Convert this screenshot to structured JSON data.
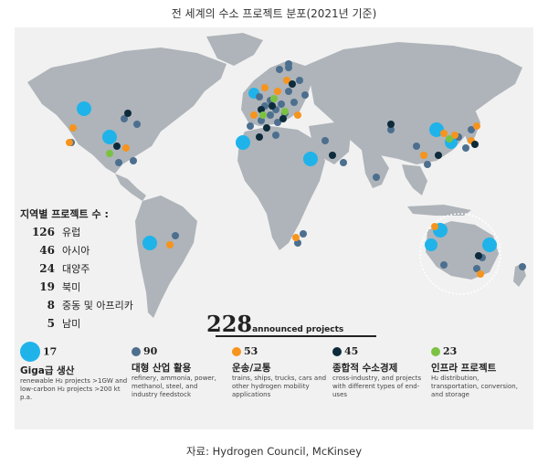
{
  "title": "전 세계의 수소 프로젝트 분포(2021년 기준)",
  "source": "자료: Hydrogen Council, McKinsey",
  "regions": {
    "title": "지역별 프로젝트 수 :",
    "items": [
      {
        "count": "126",
        "name": "유럽"
      },
      {
        "count": "46",
        "name": "아시아"
      },
      {
        "count": "24",
        "name": "대양주"
      },
      {
        "count": "19",
        "name": "북미"
      },
      {
        "count": "8",
        "name": "중동 및 아프리카"
      },
      {
        "count": "5",
        "name": "남미"
      }
    ]
  },
  "total": {
    "value": "228",
    "label": "announced projects"
  },
  "legend": [
    {
      "count": "17",
      "heading": "Giga급 생산",
      "desc": "renewable H₂ projects >1GW and low-carbon H₂ projects >200 kt p.a.",
      "color": "#1fb3ea",
      "type": "giga"
    },
    {
      "count": "90",
      "heading": "대형 산업 활용",
      "desc": "refinery, ammonia, power, methanol, steel, and industry feedstock",
      "color": "#4d6f8f",
      "type": "industry"
    },
    {
      "count": "53",
      "heading": "운송/교통",
      "desc": "trains, ships, trucks, cars and other hydrogen mobility applications",
      "color": "#f7941d",
      "type": "transport"
    },
    {
      "count": "45",
      "heading": "종합적 수소경제",
      "desc": "cross-industry, and projects with different types of end-uses",
      "color": "#0d2b3a",
      "type": "integrated"
    },
    {
      "count": "23",
      "heading": "인프라 프로젝트",
      "desc": "H₂ distribution, transportation, conversion, and storage",
      "color": "#7cc242",
      "type": "infra"
    }
  ],
  "colors": {
    "land": "#aeb4b9",
    "ocean": "#f1f1f1",
    "giga": "#1fb3ea",
    "industry": "#4d6f8f",
    "transport": "#f7941d",
    "integrated": "#0d2b3a",
    "infra": "#7cc242"
  }
}
